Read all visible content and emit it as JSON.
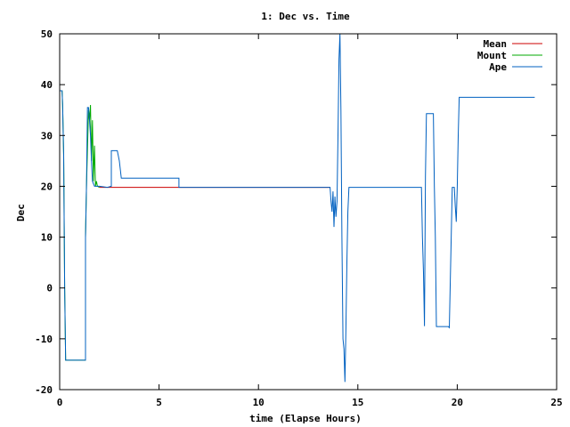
{
  "chart_data": {
    "type": "line",
    "title": "1: Dec vs. Time",
    "xlabel": "time (Elapse Hours)",
    "ylabel": "Dec",
    "xlim": [
      0,
      25
    ],
    "ylim": [
      -20,
      50
    ],
    "xticks": [
      0,
      5,
      10,
      15,
      20,
      25
    ],
    "yticks": [
      -20,
      -10,
      0,
      10,
      20,
      30,
      40,
      50
    ],
    "grid": false,
    "legend_position": "top-right",
    "series": [
      {
        "name": "Mean",
        "color": "#cc0000",
        "x": [
          2.0,
          2.4,
          2.4,
          9.3,
          9.3,
          13.6
        ],
        "y": [
          19.8,
          19.8,
          19.8,
          19.8,
          19.8,
          19.8
        ]
      },
      {
        "name": "Mount",
        "color": "#00aa00",
        "x": [
          0.0,
          0.12,
          0.15,
          0.2,
          0.25,
          0.3,
          1.3,
          1.3,
          1.35,
          1.45,
          1.5,
          1.55,
          1.6,
          1.65,
          1.7,
          1.75,
          1.8,
          1.85,
          1.9,
          2.0
        ],
        "y": [
          38.8,
          38.8,
          36.0,
          26.0,
          0.0,
          -14.2,
          -14.2,
          10.0,
          20.0,
          35.0,
          33.0,
          36.0,
          25.0,
          33.0,
          21.0,
          28.0,
          20.0,
          21.0,
          20.0,
          19.8
        ]
      },
      {
        "name": "Ape",
        "color": "#0060c0",
        "x": [
          0.0,
          0.12,
          0.15,
          0.2,
          0.25,
          0.3,
          1.3,
          1.3,
          1.35,
          1.4,
          1.45,
          1.5,
          1.55,
          1.6,
          1.65,
          1.7,
          1.75,
          1.8,
          1.85,
          2.0,
          2.4,
          2.6,
          2.6,
          2.7,
          2.9,
          3.0,
          3.1,
          3.1,
          5.1,
          5.2,
          6.0,
          6.0,
          9.3,
          9.3,
          13.6,
          13.65,
          13.7,
          13.75,
          13.8,
          13.85,
          13.9,
          13.95,
          14.0,
          14.05,
          14.1,
          14.15,
          14.2,
          14.25,
          14.3,
          14.35,
          14.4,
          14.45,
          14.5,
          14.55,
          14.6,
          14.65,
          14.7,
          14.75,
          18.2,
          18.25,
          18.3,
          18.35,
          18.4,
          18.45,
          18.75,
          18.8,
          18.85,
          18.9,
          18.95,
          19.5,
          19.55,
          19.6,
          19.75,
          19.8,
          19.85,
          19.9,
          19.95,
          20.0,
          20.05,
          20.1,
          23.9
        ],
        "y": [
          38.8,
          38.8,
          36.0,
          26.0,
          0.0,
          -14.2,
          -14.2,
          10.0,
          20.0,
          35.5,
          35.5,
          33.0,
          30.0,
          25.0,
          21.0,
          20.5,
          20.0,
          20.0,
          20.0,
          20.0,
          19.8,
          20.0,
          27.0,
          27.0,
          27.0,
          25.0,
          21.6,
          21.6,
          21.6,
          21.6,
          21.6,
          19.8,
          19.8,
          19.8,
          19.8,
          17.0,
          15.0,
          19.0,
          12.0,
          18.0,
          14.0,
          17.0,
          30.0,
          45.0,
          50.0,
          35.0,
          10.0,
          -10.0,
          -12.0,
          -18.5,
          -8.0,
          5.0,
          15.0,
          19.8,
          19.8,
          19.8,
          19.8,
          19.8,
          19.8,
          10.0,
          3.0,
          -7.5,
          22.0,
          34.3,
          34.3,
          34.3,
          20.0,
          10.0,
          -7.6,
          -7.6,
          -7.6,
          -7.8,
          19.8,
          19.8,
          19.8,
          16.0,
          13.0,
          19.8,
          30.0,
          37.5,
          37.5
        ]
      }
    ]
  }
}
